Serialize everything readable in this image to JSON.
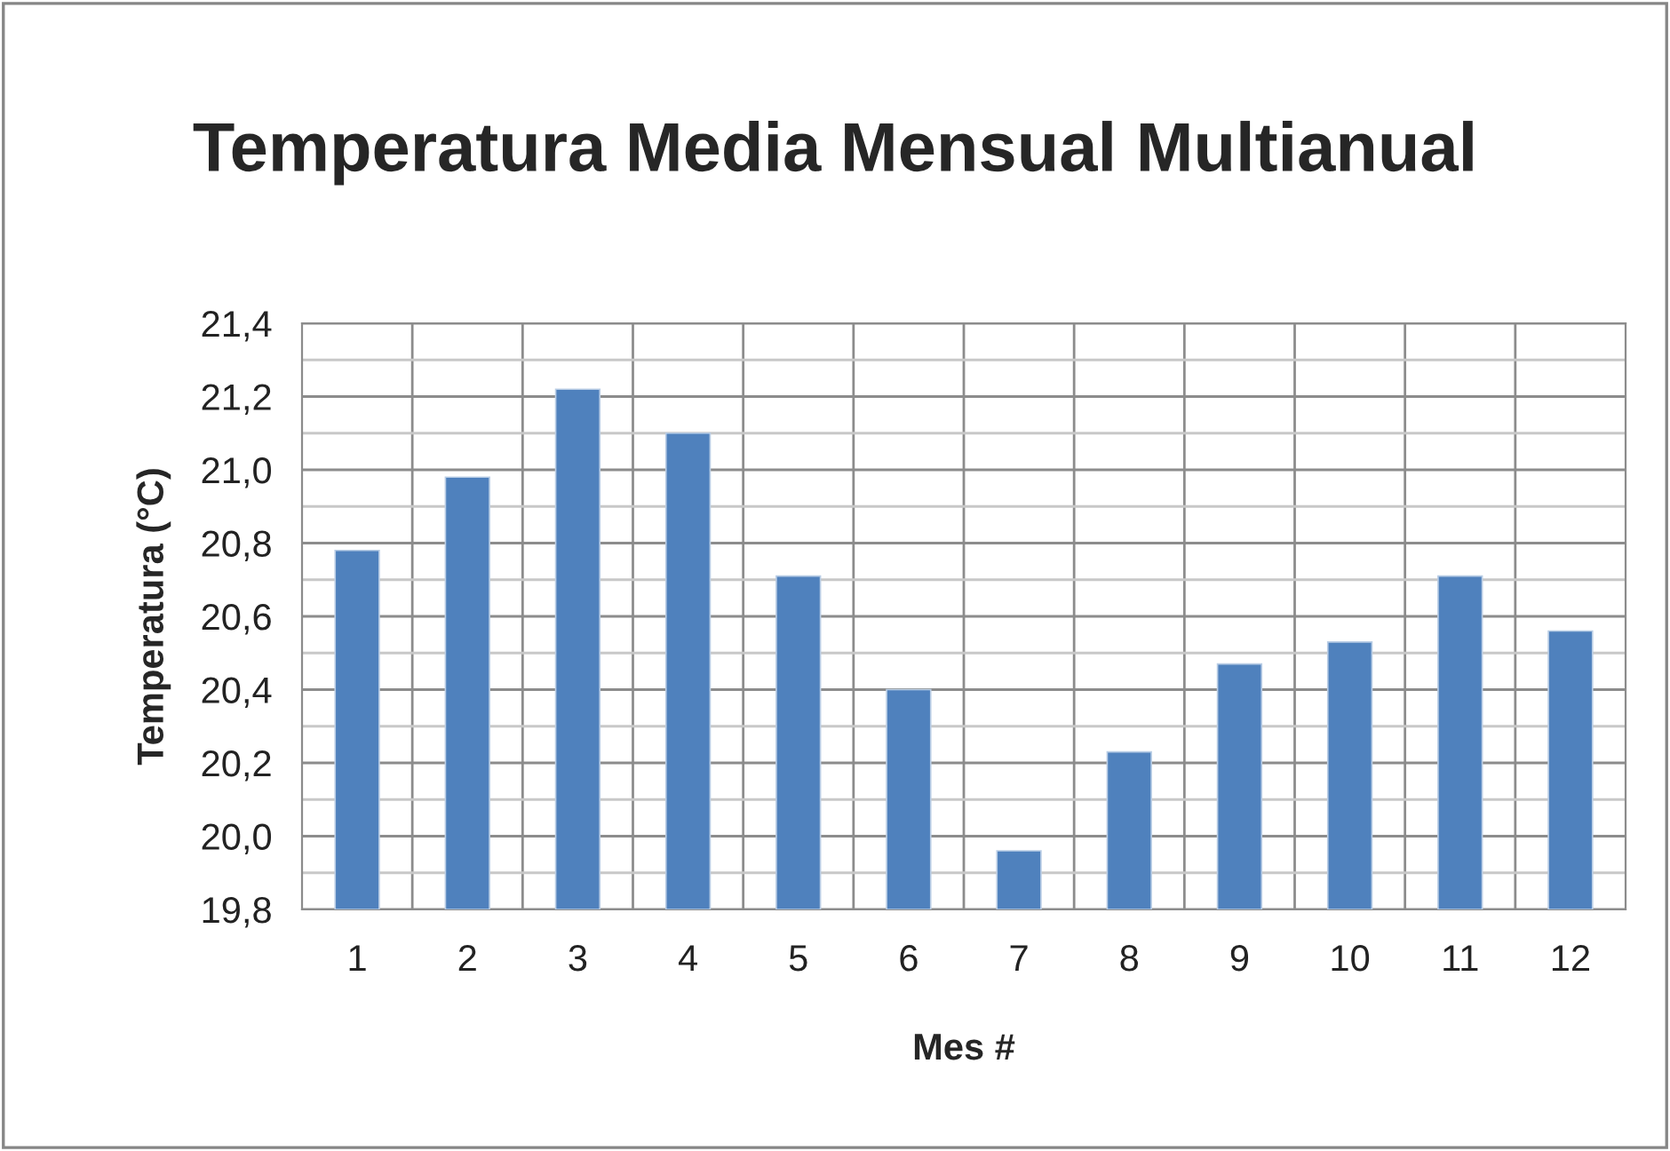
{
  "chart_data": {
    "type": "bar",
    "title": "Temperatura Media Mensual Multianual",
    "xlabel": "Mes #",
    "ylabel": "Temperatura (°C)",
    "categories": [
      "1",
      "2",
      "3",
      "4",
      "5",
      "6",
      "7",
      "8",
      "9",
      "10",
      "11",
      "12"
    ],
    "values": [
      20.78,
      20.98,
      21.22,
      21.1,
      20.71,
      20.4,
      19.96,
      20.23,
      20.47,
      20.53,
      20.71,
      20.56
    ],
    "color": "#4f81bd",
    "ylim": [
      19.8,
      21.4
    ],
    "yticks": [
      {
        "value": 19.8,
        "label": "19,8"
      },
      {
        "value": 20.0,
        "label": "20,0"
      },
      {
        "value": 20.2,
        "label": "20,2"
      },
      {
        "value": 20.4,
        "label": "20,4"
      },
      {
        "value": 20.6,
        "label": "20,6"
      },
      {
        "value": 20.8,
        "label": "20,8"
      },
      {
        "value": 21.0,
        "label": "21,0"
      },
      {
        "value": 21.2,
        "label": "21,2"
      },
      {
        "value": 21.4,
        "label": "21,4"
      }
    ],
    "grid": true,
    "legend": false
  }
}
